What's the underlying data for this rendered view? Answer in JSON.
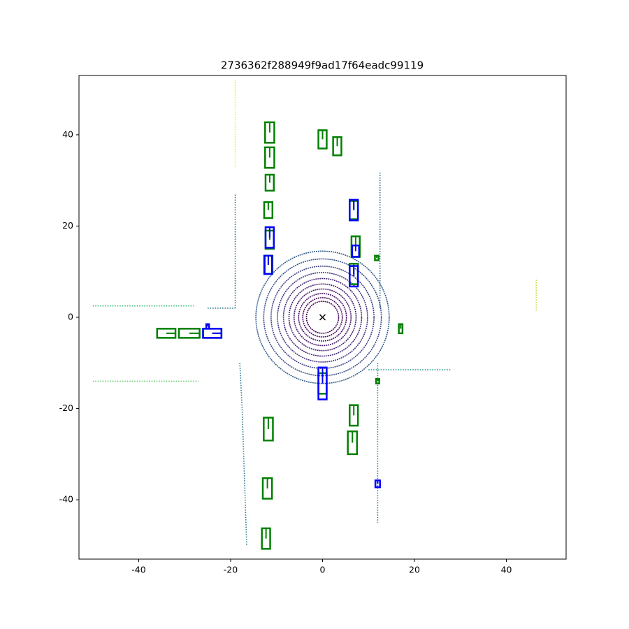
{
  "chart_data": {
    "type": "scatter",
    "title": "2736362f288949f9ad17f64eadc99119",
    "xlim": [
      -53,
      53
    ],
    "ylim": [
      -53,
      53
    ],
    "xticks": [
      -40,
      -20,
      0,
      20,
      40
    ],
    "yticks": [
      -40,
      -20,
      0,
      20,
      40
    ],
    "rings": {
      "radii": [
        3.5,
        4.3,
        5.2,
        6.2,
        7.3,
        8.5,
        9.8,
        11.2,
        12.8,
        14.5
      ],
      "colors": [
        "#440154",
        "#46085c",
        "#471063",
        "#481769",
        "#481f70",
        "#472777",
        "#453581",
        "#414487",
        "#3b528b",
        "#355f8d"
      ]
    },
    "series": [
      {
        "color": "#2f6c8e",
        "x": [
          -19,
          -19,
          -19
        ],
        "values": [
          2,
          15,
          27
        ]
      },
      {
        "color": "#2a788e",
        "x": [
          -25,
          -22,
          -19
        ],
        "values": [
          2,
          2,
          2
        ]
      },
      {
        "color": "#2a788e",
        "x": [
          -18,
          -17.5,
          -17,
          -16.5
        ],
        "values": [
          -10,
          -20,
          -35,
          -50
        ]
      },
      {
        "color": "#31688e",
        "x": [
          12.5,
          12.5,
          12.5
        ],
        "values": [
          2,
          15,
          32
        ]
      },
      {
        "color": "#26828e",
        "x": [
          12,
          12,
          12
        ],
        "values": [
          -10,
          -25,
          -45
        ]
      },
      {
        "color": "#21918c",
        "x": [
          10,
          18,
          28
        ],
        "values": [
          -11.5,
          -11.5,
          -11.5
        ]
      },
      {
        "color": "#5ec962",
        "x": [
          -50,
          -38,
          -27
        ],
        "values": [
          -14,
          -14,
          -14
        ]
      },
      {
        "color": "#35b779",
        "x": [
          -50,
          -40,
          -28
        ],
        "values": [
          2.5,
          2.5,
          2.5
        ]
      },
      {
        "color": "#b5de2b",
        "x": [
          46.5,
          46.5
        ],
        "values": [
          1.5,
          8.5
        ]
      },
      {
        "color": "#fde725",
        "x": [
          -19,
          -19
        ],
        "values": [
          33,
          52
        ]
      }
    ],
    "ego": [
      0,
      0
    ],
    "boxes": [
      {
        "x": -11.5,
        "y": 40.5,
        "w": 2,
        "l": 4.5,
        "color": "#008000"
      },
      {
        "x": -11.5,
        "y": 35,
        "w": 2,
        "l": 4.5,
        "color": "#008000"
      },
      {
        "x": -11.5,
        "y": 29.5,
        "w": 1.8,
        "l": 3.5,
        "color": "#008000"
      },
      {
        "x": -11.8,
        "y": 23.5,
        "w": 1.8,
        "l": 3.5,
        "color": "#008000"
      },
      {
        "x": -11.5,
        "y": 17,
        "w": 1.8,
        "l": 4,
        "color": "#008000"
      },
      {
        "x": -11.8,
        "y": 11.5,
        "w": 1.8,
        "l": 4,
        "color": "#008000"
      },
      {
        "x": 0,
        "y": 39,
        "w": 1.8,
        "l": 4,
        "color": "#008000"
      },
      {
        "x": 3.2,
        "y": 37.5,
        "w": 1.8,
        "l": 4,
        "color": "#008000"
      },
      {
        "x": 6.8,
        "y": 23.5,
        "w": 1.8,
        "l": 4,
        "color": "#008000"
      },
      {
        "x": 7.2,
        "y": 15.5,
        "w": 1.8,
        "l": 4.5,
        "color": "#008000"
      },
      {
        "x": 6.8,
        "y": 9.5,
        "w": 1.8,
        "l": 4.5,
        "color": "#008000"
      },
      {
        "x": 11.8,
        "y": 13,
        "w": 0.8,
        "l": 1,
        "color": "#008000"
      },
      {
        "x": -34,
        "y": -3.5,
        "w": 4,
        "l": 2,
        "color": "#008000"
      },
      {
        "x": -29,
        "y": -3.5,
        "w": 4.5,
        "l": 2,
        "color": "#008000"
      },
      {
        "x": -24,
        "y": -3.5,
        "w": 4,
        "l": 2,
        "color": "#008000"
      },
      {
        "x": 0,
        "y": -14.5,
        "w": 1.8,
        "l": 4.5,
        "color": "#008000"
      },
      {
        "x": 17,
        "y": -2.5,
        "w": 0.8,
        "l": 2,
        "color": "#008000"
      },
      {
        "x": 12,
        "y": -14,
        "w": 0.7,
        "l": 1,
        "color": "#008000"
      },
      {
        "x": 6.8,
        "y": -21.5,
        "w": 1.8,
        "l": 4.5,
        "color": "#008000"
      },
      {
        "x": 6.5,
        "y": -27.5,
        "w": 2,
        "l": 5,
        "color": "#008000"
      },
      {
        "x": -11.8,
        "y": -24.5,
        "w": 2,
        "l": 5,
        "color": "#008000"
      },
      {
        "x": -12,
        "y": -37.5,
        "w": 2,
        "l": 4.5,
        "color": "#008000"
      },
      {
        "x": -12.3,
        "y": -48.5,
        "w": 1.8,
        "l": 4.5,
        "color": "#008000"
      },
      {
        "x": 6.8,
        "y": 23.5,
        "w": 1.8,
        "l": 4.5,
        "color": "#0000ff"
      },
      {
        "x": -11.5,
        "y": 17.5,
        "w": 1.8,
        "l": 4.5,
        "color": "#0000ff"
      },
      {
        "x": 7.2,
        "y": 14.5,
        "w": 1.5,
        "l": 2.5,
        "color": "#0000ff"
      },
      {
        "x": -11.8,
        "y": 11.5,
        "w": 1.6,
        "l": 4,
        "color": "#0000ff"
      },
      {
        "x": 6.8,
        "y": 9,
        "w": 1.8,
        "l": 4.5,
        "color": "#0000ff"
      },
      {
        "x": -24,
        "y": -3.5,
        "w": 4,
        "l": 2,
        "color": "#0000ff"
      },
      {
        "x": -25,
        "y": -2,
        "w": 0.6,
        "l": 1,
        "color": "#0000ff"
      },
      {
        "x": 0,
        "y": -14.5,
        "w": 1.8,
        "l": 7,
        "color": "#0000ff"
      },
      {
        "x": 12,
        "y": -36.5,
        "w": 1,
        "l": 1.5,
        "color": "#0000ff"
      }
    ]
  }
}
